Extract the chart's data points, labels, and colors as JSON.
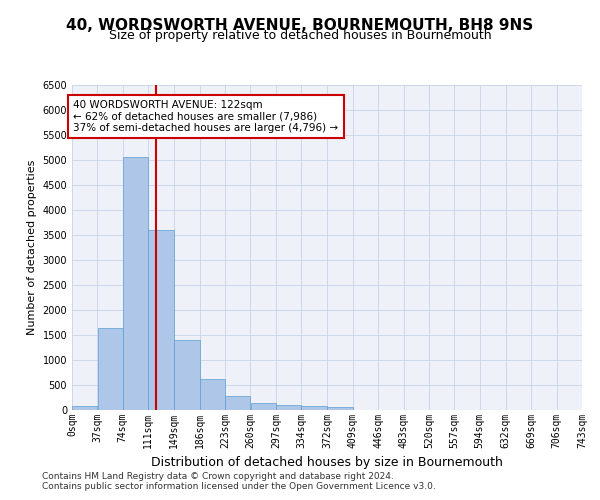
{
  "title1": "40, WORDSWORTH AVENUE, BOURNEMOUTH, BH8 9NS",
  "title2": "Size of property relative to detached houses in Bournemouth",
  "xlabel": "Distribution of detached houses by size in Bournemouth",
  "ylabel": "Number of detached properties",
  "bar_values": [
    75,
    1650,
    5050,
    3600,
    1400,
    620,
    290,
    145,
    100,
    80,
    60,
    0,
    0,
    0,
    0,
    0,
    0,
    0,
    0,
    0
  ],
  "bin_edges": [
    0,
    37,
    74,
    111,
    149,
    186,
    223,
    260,
    297,
    334,
    372,
    409,
    446,
    483,
    520,
    557,
    594,
    632,
    669,
    706,
    743
  ],
  "tick_labels": [
    "0sqm",
    "37sqm",
    "74sqm",
    "111sqm",
    "149sqm",
    "186sqm",
    "223sqm",
    "260sqm",
    "297sqm",
    "334sqm",
    "372sqm",
    "409sqm",
    "446sqm",
    "483sqm",
    "520sqm",
    "557sqm",
    "594sqm",
    "632sqm",
    "669sqm",
    "706sqm",
    "743sqm"
  ],
  "bar_color": "#aec6e8",
  "bar_edgecolor": "#5a9fd4",
  "property_size": 122,
  "vline_color": "#cc0000",
  "annotation_line1": "40 WORDSWORTH AVENUE: 122sqm",
  "annotation_line2": "← 62% of detached houses are smaller (7,986)",
  "annotation_line3": "37% of semi-detached houses are larger (4,796) →",
  "annotation_box_edgecolor": "#cc0000",
  "ylim": [
    0,
    6500
  ],
  "yticks": [
    0,
    500,
    1000,
    1500,
    2000,
    2500,
    3000,
    3500,
    4000,
    4500,
    5000,
    5500,
    6000,
    6500
  ],
  "footer1": "Contains HM Land Registry data © Crown copyright and database right 2024.",
  "footer2": "Contains public sector information licensed under the Open Government Licence v3.0.",
  "background_color": "#ffffff",
  "grid_color": "#c8d4e8",
  "title1_fontsize": 11,
  "title2_fontsize": 9,
  "xlabel_fontsize": 9,
  "ylabel_fontsize": 8,
  "tick_fontsize": 7,
  "annotation_fontsize": 7.5,
  "footer_fontsize": 6.5
}
